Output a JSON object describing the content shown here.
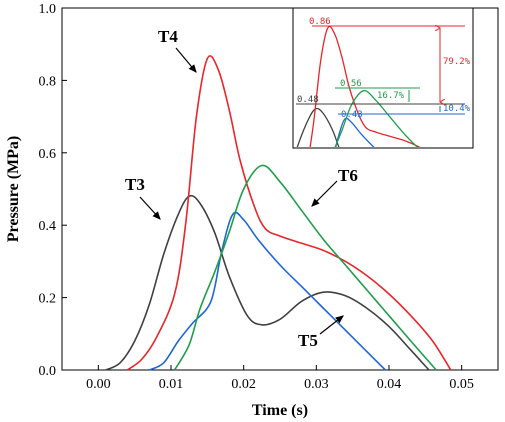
{
  "chart_data": {
    "type": "line",
    "xlabel": "Time (s)",
    "ylabel": "Pressure (MPa)",
    "xlim": [
      -0.005,
      0.055
    ],
    "ylim": [
      0.0,
      1.0
    ],
    "xticks": [
      "0.00",
      "0.01",
      "0.02",
      "0.03",
      "0.04",
      "0.05"
    ],
    "yticks": [
      "0.0",
      "0.2",
      "0.4",
      "0.6",
      "0.8",
      "1.0"
    ],
    "xtick_values": [
      0.0,
      0.01,
      0.02,
      0.03,
      0.04,
      0.05
    ],
    "ytick_values": [
      0.0,
      0.2,
      0.4,
      0.6,
      0.8,
      1.0
    ],
    "grid": false,
    "series": [
      {
        "name": "T3",
        "color": "#404040",
        "points": [
          [
            0.001,
            0.0
          ],
          [
            0.003,
            0.02
          ],
          [
            0.005,
            0.08
          ],
          [
            0.007,
            0.18
          ],
          [
            0.009,
            0.32
          ],
          [
            0.011,
            0.43
          ],
          [
            0.0125,
            0.48
          ],
          [
            0.014,
            0.46
          ],
          [
            0.016,
            0.38
          ],
          [
            0.018,
            0.26
          ],
          [
            0.0205,
            0.15
          ],
          [
            0.0225,
            0.125
          ],
          [
            0.025,
            0.14
          ],
          [
            0.028,
            0.19
          ],
          [
            0.031,
            0.215
          ],
          [
            0.034,
            0.205
          ],
          [
            0.037,
            0.17
          ],
          [
            0.04,
            0.12
          ],
          [
            0.043,
            0.055
          ],
          [
            0.0455,
            0.0
          ]
        ]
      },
      {
        "name": "T4",
        "color": "#e8262b",
        "points": [
          [
            0.004,
            0.0
          ],
          [
            0.006,
            0.03
          ],
          [
            0.008,
            0.09
          ],
          [
            0.0105,
            0.21
          ],
          [
            0.012,
            0.4
          ],
          [
            0.0135,
            0.7
          ],
          [
            0.015,
            0.86
          ],
          [
            0.0165,
            0.83
          ],
          [
            0.018,
            0.72
          ],
          [
            0.0195,
            0.58
          ],
          [
            0.0215,
            0.45
          ],
          [
            0.023,
            0.39
          ],
          [
            0.025,
            0.37
          ],
          [
            0.028,
            0.35
          ],
          [
            0.031,
            0.33
          ],
          [
            0.034,
            0.3
          ],
          [
            0.037,
            0.26
          ],
          [
            0.04,
            0.21
          ],
          [
            0.043,
            0.15
          ],
          [
            0.046,
            0.08
          ],
          [
            0.0485,
            0.0
          ]
        ]
      },
      {
        "name": "T5",
        "color": "#1f66d6",
        "points": [
          [
            0.007,
            0.0
          ],
          [
            0.009,
            0.02
          ],
          [
            0.011,
            0.08
          ],
          [
            0.013,
            0.13
          ],
          [
            0.0155,
            0.19
          ],
          [
            0.017,
            0.33
          ],
          [
            0.0185,
            0.43
          ],
          [
            0.02,
            0.415
          ],
          [
            0.022,
            0.36
          ],
          [
            0.025,
            0.29
          ],
          [
            0.028,
            0.23
          ],
          [
            0.031,
            0.17
          ],
          [
            0.034,
            0.11
          ],
          [
            0.037,
            0.05
          ],
          [
            0.0395,
            0.0
          ]
        ]
      },
      {
        "name": "T6",
        "color": "#1f9e4a",
        "points": [
          [
            0.0105,
            0.0
          ],
          [
            0.0125,
            0.07
          ],
          [
            0.014,
            0.17
          ],
          [
            0.016,
            0.27
          ],
          [
            0.018,
            0.38
          ],
          [
            0.02,
            0.5
          ],
          [
            0.0225,
            0.565
          ],
          [
            0.025,
            0.52
          ],
          [
            0.028,
            0.44
          ],
          [
            0.031,
            0.36
          ],
          [
            0.034,
            0.29
          ],
          [
            0.037,
            0.22
          ],
          [
            0.04,
            0.15
          ],
          [
            0.043,
            0.08
          ],
          [
            0.0465,
            0.0
          ]
        ]
      }
    ],
    "annotations": [
      {
        "series": "T3",
        "text": "T3",
        "arrow_to": [
          0.0115,
          0.4
        ]
      },
      {
        "series": "T4",
        "text": "T4",
        "arrow_to": [
          0.0145,
          0.82
        ]
      },
      {
        "series": "T5",
        "text": "T5",
        "arrow_to": [
          0.0345,
          0.14
        ]
      },
      {
        "series": "T6",
        "text": "T6",
        "arrow_to": [
          0.03,
          0.44
        ]
      }
    ],
    "inset": {
      "labels": [
        {
          "text": "0.86",
          "color": "#e8262b"
        },
        {
          "text": "0.56",
          "color": "#1f9e4a"
        },
        {
          "text": "0.48",
          "color": "#404040"
        },
        {
          "text": "0.43",
          "color": "#1f66d6"
        },
        {
          "text": "79.2%",
          "color": "#e8262b"
        },
        {
          "text": "16.7%",
          "color": "#1f9e4a"
        },
        {
          "text": "10.4%",
          "color": "#1f66d6"
        }
      ]
    }
  }
}
